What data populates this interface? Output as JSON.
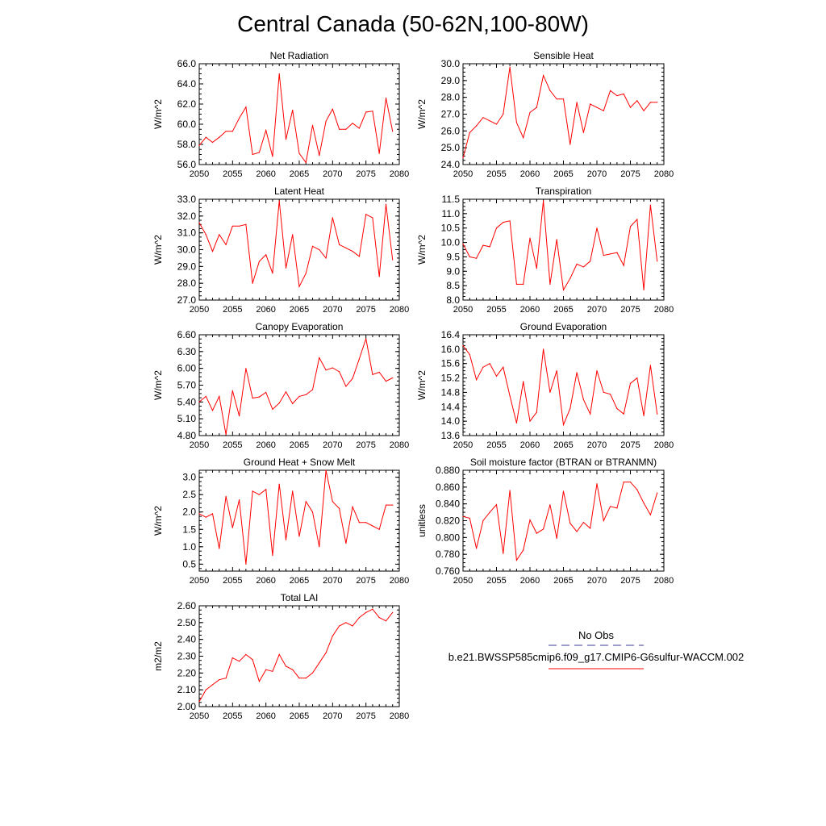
{
  "title": "Central Canada (50-62N,100-80W)",
  "colors": {
    "series": "#ff0000",
    "obs": "#3b3b9e",
    "axis": "#000000"
  },
  "legend": {
    "obs_label": "No Obs",
    "model_label": "b.e21.BWSSP585cmip6.f09_g17.CMIP6-G6sulfur-WACCM.002"
  },
  "chart_data": [
    {
      "type": "line",
      "title": "Net Radiation",
      "ylabel": "W/m^2",
      "xlim": [
        2050,
        2080
      ],
      "xticks": [
        2050,
        2055,
        2060,
        2065,
        2070,
        2075,
        2080
      ],
      "ylim": [
        56,
        66
      ],
      "yticks": [
        "56.0",
        "58.0",
        "60.0",
        "62.0",
        "64.0",
        "66.0"
      ],
      "x": [
        2050,
        2051,
        2052,
        2053,
        2054,
        2055,
        2056,
        2057,
        2058,
        2059,
        2060,
        2061,
        2062,
        2063,
        2064,
        2065,
        2066,
        2067,
        2068,
        2069,
        2070,
        2071,
        2072,
        2073,
        2074,
        2075,
        2076,
        2077,
        2078,
        2079
      ],
      "values": [
        57.9,
        58.7,
        58.2,
        58.7,
        59.3,
        59.3,
        60.6,
        61.7,
        57.0,
        57.2,
        59.4,
        56.8,
        65.0,
        58.5,
        61.4,
        57.1,
        56.2,
        59.9,
        56.9,
        60.3,
        61.5,
        59.5,
        59.5,
        60.1,
        59.6,
        61.2,
        61.3,
        57.1,
        62.6,
        59.3
      ],
      "series": [
        {
          "name": "b.e21.BWSSP585cmip6.f09_g17.CMIP6-G6sulfur-WACCM.002"
        }
      ]
    },
    {
      "type": "line",
      "title": "Sensible Heat",
      "ylabel": "W/m^2",
      "xlim": [
        2050,
        2080
      ],
      "xticks": [
        2050,
        2055,
        2060,
        2065,
        2070,
        2075,
        2080
      ],
      "ylim": [
        24,
        30
      ],
      "yticks": [
        "24.0",
        "25.0",
        "26.0",
        "27.0",
        "28.0",
        "29.0",
        "30.0"
      ],
      "x": [
        2050,
        2051,
        2052,
        2053,
        2054,
        2055,
        2056,
        2057,
        2058,
        2059,
        2060,
        2061,
        2062,
        2063,
        2064,
        2065,
        2066,
        2067,
        2068,
        2069,
        2070,
        2071,
        2072,
        2073,
        2074,
        2075,
        2076,
        2077,
        2078,
        2079
      ],
      "values": [
        24.4,
        25.9,
        26.3,
        26.8,
        26.6,
        26.4,
        27.0,
        29.8,
        26.5,
        25.6,
        27.1,
        27.4,
        29.3,
        28.4,
        27.9,
        27.9,
        25.2,
        27.7,
        25.9,
        27.6,
        27.4,
        27.2,
        28.4,
        28.1,
        28.2,
        27.4,
        27.8,
        27.2,
        27.7,
        27.7
      ],
      "series": [
        {
          "name": "b.e21.BWSSP585cmip6.f09_g17.CMIP6-G6sulfur-WACCM.002"
        }
      ]
    },
    {
      "type": "line",
      "title": "Latent Heat",
      "ylabel": "W/m^2",
      "xlim": [
        2050,
        2080
      ],
      "xticks": [
        2050,
        2055,
        2060,
        2065,
        2070,
        2075,
        2080
      ],
      "ylim": [
        27,
        33
      ],
      "yticks": [
        "27.0",
        "28.0",
        "29.0",
        "30.0",
        "31.0",
        "32.0",
        "33.0"
      ],
      "x": [
        2050,
        2051,
        2052,
        2053,
        2054,
        2055,
        2056,
        2057,
        2058,
        2059,
        2060,
        2061,
        2062,
        2063,
        2064,
        2065,
        2066,
        2067,
        2068,
        2069,
        2070,
        2071,
        2072,
        2073,
        2074,
        2075,
        2076,
        2077,
        2078,
        2079
      ],
      "values": [
        31.6,
        30.9,
        29.9,
        30.9,
        30.3,
        31.4,
        31.4,
        31.5,
        28.0,
        29.3,
        29.7,
        28.6,
        32.9,
        28.9,
        30.9,
        27.8,
        28.6,
        30.2,
        30.0,
        29.5,
        31.9,
        30.3,
        30.1,
        29.9,
        29.6,
        32.1,
        31.9,
        28.4,
        32.7,
        29.4
      ],
      "series": [
        {
          "name": "b.e21.BWSSP585cmip6.f09_g17.CMIP6-G6sulfur-WACCM.002"
        }
      ]
    },
    {
      "type": "line",
      "title": "Transpiration",
      "ylabel": "W/m^2",
      "xlim": [
        2050,
        2080
      ],
      "xticks": [
        2050,
        2055,
        2060,
        2065,
        2070,
        2075,
        2080
      ],
      "ylim": [
        8,
        11.5
      ],
      "yticks": [
        "8.0",
        "8.5",
        "9.0",
        "9.5",
        "10.0",
        "10.5",
        "11.0",
        "11.5"
      ],
      "x": [
        2050,
        2051,
        2052,
        2053,
        2054,
        2055,
        2056,
        2057,
        2058,
        2059,
        2060,
        2061,
        2062,
        2063,
        2064,
        2065,
        2066,
        2067,
        2068,
        2069,
        2070,
        2071,
        2072,
        2073,
        2074,
        2075,
        2076,
        2077,
        2078,
        2079
      ],
      "values": [
        9.95,
        9.5,
        9.45,
        9.9,
        9.85,
        10.5,
        10.7,
        10.75,
        8.55,
        8.55,
        10.15,
        9.1,
        11.45,
        8.55,
        10.1,
        8.35,
        8.75,
        9.25,
        9.15,
        9.35,
        10.5,
        9.55,
        9.6,
        9.65,
        9.2,
        10.55,
        10.8,
        8.35,
        11.3,
        9.35
      ],
      "series": [
        {
          "name": "b.e21.BWSSP585cmip6.f09_g17.CMIP6-G6sulfur-WACCM.002"
        }
      ]
    },
    {
      "type": "line",
      "title": "Canopy Evaporation",
      "ylabel": "W/m^2",
      "xlim": [
        2050,
        2080
      ],
      "xticks": [
        2050,
        2055,
        2060,
        2065,
        2070,
        2075,
        2080
      ],
      "ylim": [
        4.8,
        6.6
      ],
      "yticks": [
        "4.80",
        "5.10",
        "5.40",
        "5.70",
        "6.00",
        "6.30",
        "6.60"
      ],
      "x": [
        2050,
        2051,
        2052,
        2053,
        2054,
        2055,
        2056,
        2057,
        2058,
        2059,
        2060,
        2061,
        2062,
        2063,
        2064,
        2065,
        2066,
        2067,
        2068,
        2069,
        2070,
        2071,
        2072,
        2073,
        2074,
        2075,
        2076,
        2077,
        2078,
        2079
      ],
      "values": [
        5.4,
        5.5,
        5.25,
        5.5,
        4.82,
        5.6,
        5.15,
        6.0,
        5.47,
        5.49,
        5.57,
        5.27,
        5.38,
        5.58,
        5.37,
        5.5,
        5.53,
        5.62,
        6.19,
        5.97,
        6.01,
        5.94,
        5.68,
        5.82,
        6.17,
        6.53,
        5.89,
        5.93,
        5.77,
        5.83
      ],
      "series": [
        {
          "name": "b.e21.BWSSP585cmip6.f09_g17.CMIP6-G6sulfur-WACCM.002"
        }
      ]
    },
    {
      "type": "line",
      "title": "Ground Evaporation",
      "ylabel": "W/m^2",
      "xlim": [
        2050,
        2080
      ],
      "xticks": [
        2050,
        2055,
        2060,
        2065,
        2070,
        2075,
        2080
      ],
      "ylim": [
        13.6,
        16.4
      ],
      "yticks": [
        "13.6",
        "14.0",
        "14.4",
        "14.8",
        "15.2",
        "15.6",
        "16.0",
        "16.4"
      ],
      "x": [
        2050,
        2051,
        2052,
        2053,
        2054,
        2055,
        2056,
        2057,
        2058,
        2059,
        2060,
        2061,
        2062,
        2063,
        2064,
        2065,
        2066,
        2067,
        2068,
        2069,
        2070,
        2071,
        2072,
        2073,
        2074,
        2075,
        2076,
        2077,
        2078,
        2079
      ],
      "values": [
        16.1,
        15.85,
        15.15,
        15.5,
        15.6,
        15.25,
        15.5,
        14.7,
        13.95,
        15.1,
        14.0,
        14.25,
        16.0,
        14.8,
        15.4,
        13.9,
        14.35,
        15.35,
        14.6,
        14.2,
        15.4,
        14.8,
        14.75,
        14.35,
        14.2,
        15.05,
        15.2,
        14.15,
        15.55,
        14.2
      ],
      "series": [
        {
          "name": "b.e21.BWSSP585cmip6.f09_g17.CMIP6-G6sulfur-WACCM.002"
        }
      ]
    },
    {
      "type": "line",
      "title": "Ground Heat + Snow Melt",
      "ylabel": "W/m^2",
      "xlim": [
        2050,
        2080
      ],
      "xticks": [
        2050,
        2055,
        2060,
        2065,
        2070,
        2075,
        2080
      ],
      "ylim": [
        0.3,
        3.2
      ],
      "yticks": [
        "0.5",
        "1.0",
        "1.5",
        "2.0",
        "2.5",
        "3.0"
      ],
      "x": [
        2050,
        2051,
        2052,
        2053,
        2054,
        2055,
        2056,
        2057,
        2058,
        2059,
        2060,
        2061,
        2062,
        2063,
        2064,
        2065,
        2066,
        2067,
        2068,
        2069,
        2070,
        2071,
        2072,
        2073,
        2074,
        2075,
        2076,
        2077,
        2078,
        2079
      ],
      "values": [
        1.95,
        1.85,
        1.95,
        0.95,
        2.45,
        1.55,
        2.35,
        0.5,
        2.6,
        2.5,
        2.65,
        0.75,
        2.8,
        1.2,
        2.6,
        1.3,
        2.3,
        2.0,
        1.0,
        3.2,
        2.3,
        2.1,
        1.1,
        2.15,
        1.7,
        1.7,
        1.6,
        1.5,
        2.2,
        2.2
      ],
      "series": [
        {
          "name": "b.e21.BWSSP585cmip6.f09_g17.CMIP6-G6sulfur-WACCM.002"
        }
      ]
    },
    {
      "type": "line",
      "title": "Soil moisture factor (BTRAN or BTRANMN)",
      "ylabel": "unitless",
      "xlim": [
        2050,
        2080
      ],
      "xticks": [
        2050,
        2055,
        2060,
        2065,
        2070,
        2075,
        2080
      ],
      "ylim": [
        0.76,
        0.88
      ],
      "yticks": [
        "0.760",
        "0.780",
        "0.800",
        "0.820",
        "0.840",
        "0.860",
        "0.880"
      ],
      "x": [
        2050,
        2051,
        2052,
        2053,
        2054,
        2055,
        2056,
        2057,
        2058,
        2059,
        2060,
        2061,
        2062,
        2063,
        2064,
        2065,
        2066,
        2067,
        2068,
        2069,
        2070,
        2071,
        2072,
        2073,
        2074,
        2075,
        2076,
        2077,
        2078,
        2079
      ],
      "values": [
        0.825,
        0.823,
        0.787,
        0.82,
        0.83,
        0.839,
        0.781,
        0.856,
        0.773,
        0.785,
        0.821,
        0.805,
        0.81,
        0.839,
        0.799,
        0.855,
        0.817,
        0.807,
        0.818,
        0.811,
        0.864,
        0.82,
        0.837,
        0.835,
        0.866,
        0.866,
        0.857,
        0.841,
        0.827,
        0.853
      ],
      "series": [
        {
          "name": "b.e21.BWSSP585cmip6.f09_g17.CMIP6-G6sulfur-WACCM.002"
        }
      ]
    },
    {
      "type": "line",
      "title": "Total LAI",
      "ylabel": "m2/m2",
      "xlim": [
        2050,
        2080
      ],
      "xticks": [
        2050,
        2055,
        2060,
        2065,
        2070,
        2075,
        2080
      ],
      "ylim": [
        2.0,
        2.6
      ],
      "yticks": [
        "2.00",
        "2.10",
        "2.20",
        "2.30",
        "2.40",
        "2.50",
        "2.60"
      ],
      "x": [
        2050,
        2051,
        2052,
        2053,
        2054,
        2055,
        2056,
        2057,
        2058,
        2059,
        2060,
        2061,
        2062,
        2063,
        2064,
        2065,
        2066,
        2067,
        2068,
        2069,
        2070,
        2071,
        2072,
        2073,
        2074,
        2075,
        2076,
        2077,
        2078,
        2079
      ],
      "values": [
        2.03,
        2.1,
        2.13,
        2.16,
        2.17,
        2.29,
        2.27,
        2.31,
        2.28,
        2.15,
        2.22,
        2.21,
        2.31,
        2.24,
        2.22,
        2.17,
        2.17,
        2.2,
        2.26,
        2.32,
        2.42,
        2.48,
        2.5,
        2.48,
        2.53,
        2.56,
        2.58,
        2.53,
        2.51,
        2.56
      ],
      "series": [
        {
          "name": "b.e21.BWSSP585cmip6.f09_g17.CMIP6-G6sulfur-WACCM.002"
        }
      ]
    }
  ]
}
